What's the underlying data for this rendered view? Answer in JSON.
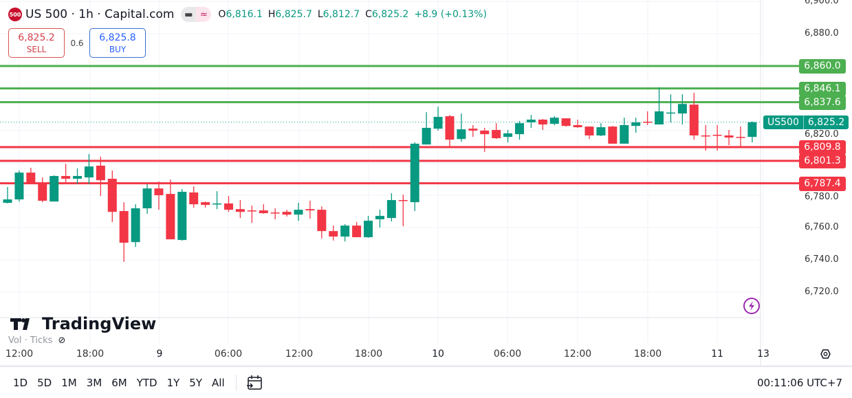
{
  "legend": {
    "logo": "500",
    "title": "US 500 · 1h · Capital.com",
    "open_key": "O",
    "open": "6,816.1",
    "high_key": "H",
    "high": "6,825.7",
    "low_key": "L",
    "low": "6,812.7",
    "close_key": "C",
    "close": "6,825.2",
    "change": "+8.9 (+0.13%)",
    "pill_icons": [
      "minus-icon",
      "approx-icon"
    ]
  },
  "trade": {
    "sell_price": "6,825.2",
    "sell_label": "SELL",
    "spread": "0.6",
    "buy_price": "6,825.8",
    "buy_label": "BUY"
  },
  "price_axis": {
    "ticks": [
      "6,900.0",
      "6,880.0",
      "6,820.0",
      "6,780.0",
      "6,760.0",
      "6,740.0",
      "6,720.0"
    ],
    "tick_values": [
      6900,
      6880,
      6820,
      6780,
      6760,
      6740,
      6720
    ],
    "current_symbol": "US500",
    "current_price": "6,825.2"
  },
  "levels": [
    {
      "label": "6,860.0",
      "value": 6860.0,
      "color": "#4caf50"
    },
    {
      "label": "6,846.1",
      "value": 6846.1,
      "color": "#4caf50"
    },
    {
      "label": "6,837.6",
      "value": 6837.6,
      "color": "#4caf50"
    },
    {
      "label": "6,809.8",
      "value": 6809.8,
      "color": "#f23645"
    },
    {
      "label": "6,801.3",
      "value": 6801.3,
      "color": "#f23645"
    },
    {
      "label": "6,787.4",
      "value": 6787.4,
      "color": "#f23645"
    }
  ],
  "colors": {
    "up": "#089981",
    "down": "#f23645",
    "grid": "#f0f3fa"
  },
  "time_axis": [
    "12:00",
    "18:00",
    "9",
    "06:00",
    "12:00",
    "18:00",
    "10",
    "06:00",
    "12:00",
    "18:00",
    "11",
    "13"
  ],
  "branding": {
    "name": "TradingView"
  },
  "volume": {
    "label": "Vol · Ticks"
  },
  "toolbar": {
    "ranges": [
      "1D",
      "5D",
      "1M",
      "3M",
      "6M",
      "YTD",
      "1Y",
      "5Y",
      "All"
    ],
    "clock": "00:11:06 UTC+7"
  },
  "chart_data": {
    "type": "candlestick",
    "interval": "1h",
    "ylim": [
      6710,
      6900
    ],
    "ohlc": [
      [
        6775.3,
        6785.1,
        6774.9,
        6777.4
      ],
      [
        6777.4,
        6795.3,
        6776.1,
        6794.0
      ],
      [
        6794.0,
        6797.0,
        6787.6,
        6787.6
      ],
      [
        6787.6,
        6791.0,
        6775.7,
        6776.6
      ],
      [
        6776.1,
        6792.3,
        6776.1,
        6791.9
      ],
      [
        6791.9,
        6799.5,
        6786.8,
        6790.2
      ],
      [
        6790.2,
        6796.6,
        6786.8,
        6791.9
      ],
      [
        6791.0,
        6805.5,
        6786.8,
        6797.8
      ],
      [
        6798.3,
        6803.8,
        6779.5,
        6789.3
      ],
      [
        6790.2,
        6795.3,
        6763.4,
        6769.7
      ],
      [
        6770.2,
        6775.7,
        6738.7,
        6750.6
      ],
      [
        6751.0,
        6774.4,
        6748.0,
        6771.9
      ],
      [
        6771.9,
        6786.8,
        6768.5,
        6784.2
      ],
      [
        6784.2,
        6788.5,
        6771.0,
        6780.0
      ],
      [
        6780.8,
        6789.7,
        6752.7,
        6752.7
      ],
      [
        6752.3,
        6783.8,
        6751.9,
        6782.1
      ],
      [
        6781.7,
        6785.5,
        6772.3,
        6774.4
      ],
      [
        6775.7,
        6776.1,
        6772.3,
        6774.0
      ],
      [
        6774.4,
        6782.5,
        6771.4,
        6774.9
      ],
      [
        6774.9,
        6779.5,
        6769.7,
        6771.0
      ],
      [
        6771.4,
        6777.0,
        6765.9,
        6769.7
      ],
      [
        6770.6,
        6773.6,
        6762.9,
        6770.2
      ],
      [
        6770.6,
        6774.4,
        6768.5,
        6768.9
      ],
      [
        6769.3,
        6771.9,
        6765.1,
        6769.1
      ],
      [
        6769.7,
        6771.0,
        6766.8,
        6768.0
      ],
      [
        6768.0,
        6775.3,
        6764.2,
        6771.0
      ],
      [
        6771.4,
        6776.6,
        6765.5,
        6770.6
      ],
      [
        6771.0,
        6773.1,
        6753.2,
        6757.8
      ],
      [
        6757.8,
        6761.2,
        6751.9,
        6754.4
      ],
      [
        6754.4,
        6762.1,
        6751.4,
        6761.2
      ],
      [
        6761.2,
        6763.4,
        6754.0,
        6754.0
      ],
      [
        6754.0,
        6767.2,
        6753.6,
        6764.2
      ],
      [
        6765.1,
        6771.0,
        6760.0,
        6767.2
      ],
      [
        6765.9,
        6781.2,
        6763.8,
        6777.0
      ],
      [
        6777.0,
        6780.4,
        6760.8,
        6776.6
      ],
      [
        6775.7,
        6812.7,
        6770.2,
        6811.9
      ],
      [
        6811.4,
        6831.4,
        6811.4,
        6821.7
      ],
      [
        6821.2,
        6834.8,
        6820.0,
        6828.5
      ],
      [
        6828.9,
        6829.7,
        6809.3,
        6814.4
      ],
      [
        6814.8,
        6830.6,
        6813.1,
        6820.8
      ],
      [
        6821.2,
        6823.4,
        6816.1,
        6820.0
      ],
      [
        6820.0,
        6821.7,
        6806.8,
        6817.8
      ],
      [
        6820.4,
        6824.6,
        6814.8,
        6815.3
      ],
      [
        6816.1,
        6820.4,
        6812.7,
        6818.3
      ],
      [
        6817.8,
        6825.9,
        6814.4,
        6824.6
      ],
      [
        6825.1,
        6829.7,
        6821.7,
        6826.8
      ],
      [
        6826.8,
        6827.2,
        6820.4,
        6823.8
      ],
      [
        6824.2,
        6828.9,
        6823.4,
        6828.0
      ],
      [
        6827.6,
        6827.6,
        6822.5,
        6822.9
      ],
      [
        6823.4,
        6826.8,
        6821.7,
        6822.1
      ],
      [
        6822.5,
        6822.5,
        6814.8,
        6817.0
      ],
      [
        6817.0,
        6824.6,
        6816.6,
        6822.1
      ],
      [
        6822.5,
        6822.9,
        6811.9,
        6811.9
      ],
      [
        6811.9,
        6828.0,
        6811.9,
        6823.4
      ],
      [
        6822.9,
        6828.0,
        6818.7,
        6825.1
      ],
      [
        6825.5,
        6831.9,
        6823.4,
        6825.1
      ],
      [
        6823.8,
        6846.8,
        6823.8,
        6831.9
      ],
      [
        6830.8,
        6842.5,
        6825.1,
        6831.2
      ],
      [
        6830.6,
        6842.5,
        6823.8,
        6836.5
      ],
      [
        6836.1,
        6843.4,
        6814.4,
        6817.0
      ],
      [
        6817.0,
        6823.4,
        6807.6,
        6816.8
      ],
      [
        6817.4,
        6823.4,
        6807.6,
        6817.2
      ],
      [
        6817.0,
        6820.4,
        6811.0,
        6815.7
      ],
      [
        6816.1,
        6822.5,
        6809.3,
        6815.9
      ],
      [
        6816.1,
        6825.7,
        6812.7,
        6825.2
      ]
    ]
  }
}
